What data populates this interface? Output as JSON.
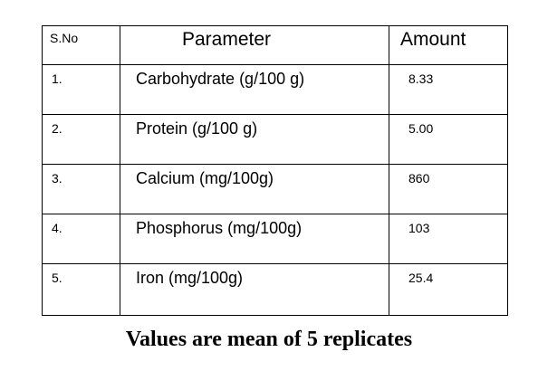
{
  "table": {
    "headers": {
      "sno": "S.No",
      "parameter": "Parameter",
      "amount": "Amount"
    },
    "rows": [
      {
        "sno": "1.",
        "parameter": "Carbohydrate (g/100 g)",
        "amount": "8.33"
      },
      {
        "sno": "2.",
        "parameter": "Protein (g/100 g)",
        "amount": "5.00"
      },
      {
        "sno": "3.",
        "parameter": "Calcium (mg/100g)",
        "amount": "860"
      },
      {
        "sno": "4.",
        "parameter": "Phosphorus (mg/100g)",
        "amount": "103"
      },
      {
        "sno": "5.",
        "parameter": "Iron (mg/100g)",
        "amount": "25.4"
      }
    ]
  },
  "footnote": "Values are mean of 5 replicates"
}
